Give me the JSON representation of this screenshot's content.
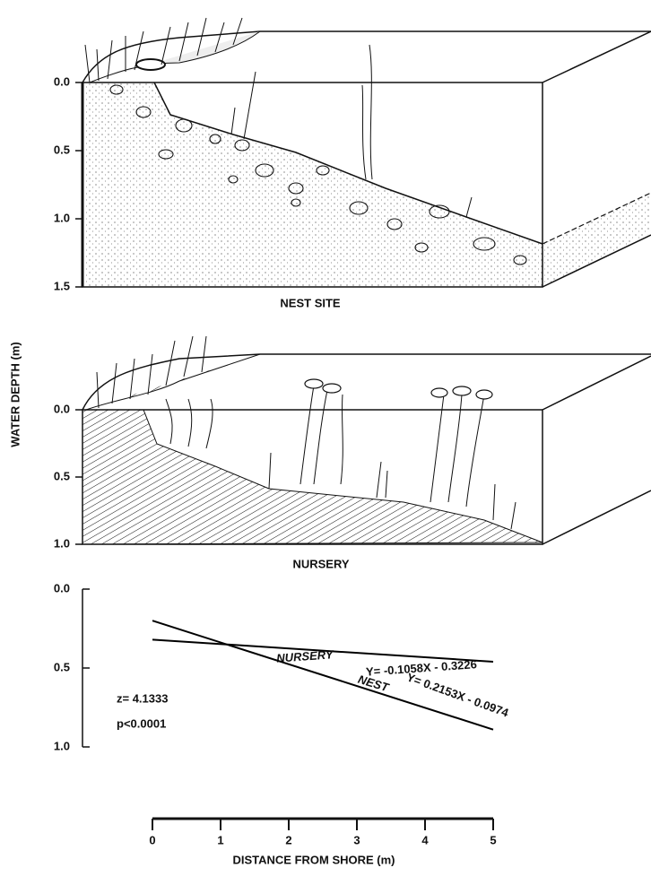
{
  "y_axis_label": "WATER DEPTH (m)",
  "panels": [
    {
      "label": "NEST SITE",
      "ylim": [
        0,
        1.5
      ],
      "yticks": [
        {
          "value": 0,
          "label": "0.0"
        },
        {
          "value": 0.5,
          "label": "0.5"
        },
        {
          "value": 1,
          "label": "1.0"
        },
        {
          "value": 1.5,
          "label": "1.5"
        }
      ]
    },
    {
      "label": "NURSERY",
      "ylim": [
        0,
        1
      ],
      "yticks": [
        {
          "value": 0,
          "label": "0.0"
        },
        {
          "value": 0.5,
          "label": "0.5"
        },
        {
          "value": 1,
          "label": "1.0"
        }
      ]
    }
  ],
  "chart_data": {
    "type": "line",
    "x_label": "DISTANCE FROM SHORE (m)",
    "x": [
      0,
      5
    ],
    "series": [
      {
        "name": "NURSERY",
        "color": "#000000",
        "values": [
          0.32,
          0.46
        ],
        "equation": "Y= -0.1058X - 0.3226"
      },
      {
        "name": "NEST",
        "color": "#000000",
        "values": [
          0.2,
          0.89
        ],
        "equation": "Y= 0.2153X - 0.0974"
      }
    ],
    "annotations": [
      "z= 4.1333",
      "p<0.0001"
    ],
    "xlim": [
      0,
      5
    ],
    "xticks": [
      0,
      1,
      2,
      3,
      4,
      5
    ],
    "ylim": [
      0,
      1
    ],
    "yticks": [
      {
        "value": 0,
        "label": "0.0"
      },
      {
        "value": 0.5,
        "label": "0.5"
      },
      {
        "value": 1,
        "label": "1.0"
      }
    ]
  }
}
